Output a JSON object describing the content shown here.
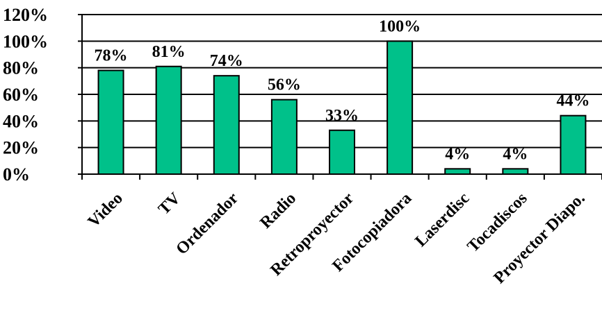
{
  "chart_data": {
    "type": "bar",
    "title": "",
    "xlabel": "",
    "ylabel": "",
    "categories": [
      "Video",
      "TV",
      "Ordenador",
      "Radio",
      "Retroproyector",
      "Fotocopiadora",
      "Laserdisc",
      "Tocadiscos",
      "Proyector Diapo."
    ],
    "values": [
      78,
      81,
      74,
      56,
      33,
      100,
      4,
      4,
      44
    ],
    "data_labels": [
      "78%",
      "81%",
      "74%",
      "56%",
      "33%",
      "100%",
      "4%",
      "4%",
      "44%"
    ],
    "y_ticks": [
      0,
      20,
      40,
      60,
      80,
      100,
      120
    ],
    "y_tick_labels": [
      "0%",
      "20%",
      "40%",
      "60%",
      "80%",
      "100%",
      "120%"
    ],
    "ylim": [
      0,
      120
    ],
    "grid": true,
    "legend": "none",
    "colors": {
      "bar": "#00C18A",
      "bar_outline": "#000000",
      "grid": "#000000",
      "axis": "#000000"
    }
  }
}
